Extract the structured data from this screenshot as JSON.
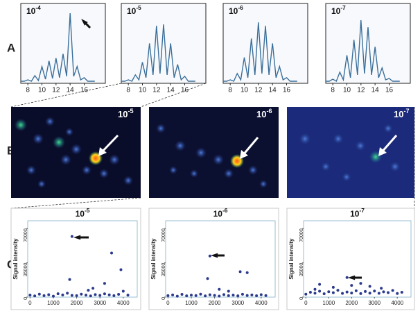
{
  "row_labels": [
    "A",
    "B",
    "C"
  ],
  "images": [
    {
      "label_base": "10",
      "label_exponent": "-5"
    },
    {
      "label_base": "10",
      "label_exponent": "-6"
    },
    {
      "label_base": "10",
      "label_exponent": "-7"
    }
  ],
  "chart_data": [
    {
      "type": "line",
      "label_base": "10",
      "label_exponent": "-4",
      "color": "#3b6f9a",
      "x": [
        7,
        7.5,
        8,
        8.5,
        9,
        9.5,
        10,
        10.5,
        11,
        11.5,
        12,
        12.5,
        13,
        13.5,
        14,
        14.5,
        15,
        15.5,
        16,
        16.5,
        17,
        17.5
      ],
      "values": [
        1,
        1,
        3,
        1,
        9,
        2,
        22,
        4,
        30,
        5,
        34,
        6,
        40,
        8,
        98,
        8,
        22,
        3,
        6,
        1,
        1,
        1
      ],
      "xlim": [
        7,
        19
      ],
      "ylim": [
        0,
        100
      ],
      "xticks": [
        8,
        10,
        12,
        14,
        16
      ]
    },
    {
      "type": "line",
      "label_base": "10",
      "label_exponent": "-5",
      "color": "#3b6f9a",
      "x": [
        7,
        7.5,
        8,
        8.5,
        9,
        9.5,
        10,
        10.5,
        11,
        11.5,
        12,
        12.5,
        13,
        13.5,
        14,
        14.5,
        15,
        15.5,
        16,
        16.5,
        17,
        17.5
      ],
      "values": [
        1,
        1,
        3,
        1,
        10,
        3,
        28,
        6,
        55,
        10,
        80,
        12,
        82,
        10,
        55,
        6,
        25,
        3,
        8,
        1,
        1,
        1
      ],
      "xlim": [
        7,
        19
      ],
      "ylim": [
        0,
        100
      ],
      "xticks": [
        8,
        10,
        12,
        14,
        16
      ]
    },
    {
      "type": "line",
      "label_base": "10",
      "label_exponent": "-6",
      "color": "#3b6f9a",
      "x": [
        7,
        7.5,
        8,
        8.5,
        9,
        9.5,
        10,
        10.5,
        11,
        11.5,
        12,
        12.5,
        13,
        13.5,
        14,
        14.5,
        15,
        15.5,
        16,
        16.5,
        17,
        17.5
      ],
      "values": [
        1,
        1,
        3,
        1,
        12,
        3,
        35,
        6,
        62,
        10,
        85,
        12,
        80,
        10,
        55,
        6,
        22,
        3,
        6,
        1,
        1,
        1
      ],
      "xlim": [
        7,
        19
      ],
      "ylim": [
        0,
        100
      ],
      "xticks": [
        8,
        10,
        12,
        14,
        16
      ]
    },
    {
      "type": "line",
      "label_base": "10",
      "label_exponent": "-7",
      "color": "#3b6f9a",
      "x": [
        7,
        7.5,
        8,
        8.5,
        9,
        9.5,
        10,
        10.5,
        11,
        11.5,
        12,
        12.5,
        13,
        13.5,
        14,
        14.5,
        15,
        15.5,
        16,
        16.5,
        17,
        17.5
      ],
      "values": [
        1,
        1,
        4,
        1,
        14,
        3,
        38,
        6,
        60,
        10,
        88,
        12,
        78,
        10,
        50,
        6,
        20,
        3,
        5,
        1,
        1,
        1
      ],
      "xlim": [
        7,
        19
      ],
      "ylim": [
        0,
        100
      ],
      "xticks": [
        8,
        10,
        12,
        14,
        16
      ]
    },
    {
      "type": "scatter",
      "label_base": "10",
      "label_exponent": "-5",
      "y_label": "Signal intensity",
      "color": "#2b3a8c",
      "x": [
        0,
        200,
        400,
        600,
        800,
        1000,
        1200,
        1400,
        1600,
        1800,
        2000,
        2200,
        2400,
        2600,
        2800,
        3000,
        3200,
        3400,
        3600,
        3800,
        4000,
        4200,
        1800,
        3500,
        3900,
        1700,
        3200,
        2700,
        2500
      ],
      "values": [
        2000,
        1200,
        3000,
        1500,
        2500,
        1000,
        3500,
        2200,
        4000,
        1800,
        1500,
        3000,
        2000,
        1200,
        2600,
        1800,
        3400,
        2300,
        1500,
        2800,
        6000,
        2000,
        62000,
        45000,
        28000,
        18000,
        14000,
        9000,
        7000
      ],
      "xlim": [
        -100,
        4600
      ],
      "ylim": [
        0,
        78000
      ],
      "xticks": [
        0,
        1000,
        2000,
        3000,
        4000
      ],
      "yticks": [
        0,
        35000,
        70000
      ]
    },
    {
      "type": "scatter",
      "label_base": "10",
      "label_exponent": "-6",
      "y_label": "Signal intensity",
      "color": "#2b3a8c",
      "x": [
        0,
        200,
        400,
        600,
        800,
        1000,
        1200,
        1400,
        1600,
        1800,
        2000,
        2200,
        2400,
        2600,
        2800,
        3000,
        3200,
        3400,
        3600,
        3800,
        4000,
        4200,
        1800,
        3100,
        3400,
        1700,
        2200,
        2600
      ],
      "values": [
        1500,
        2200,
        1000,
        2800,
        1300,
        2000,
        1600,
        3000,
        1200,
        2400,
        1800,
        1100,
        2600,
        1500,
        2000,
        1300,
        2900,
        1700,
        2200,
        1400,
        2500,
        1600,
        42000,
        26000,
        25000,
        19000,
        8000,
        6000
      ],
      "xlim": [
        -100,
        4600
      ],
      "ylim": [
        0,
        78000
      ],
      "xticks": [
        0,
        1000,
        2000,
        3000,
        4000
      ],
      "yticks": [
        0,
        35000,
        70000
      ]
    },
    {
      "type": "scatter",
      "label_base": "10",
      "label_exponent": "-7",
      "y_label": "Signal intensity",
      "color": "#2b3a8c",
      "x": [
        0,
        200,
        400,
        600,
        800,
        1000,
        1200,
        1400,
        1600,
        1800,
        2000,
        2200,
        2400,
        2600,
        2800,
        3000,
        3200,
        3400,
        3600,
        3800,
        4000,
        4200,
        1800,
        600,
        2400,
        1200,
        3300,
        2000,
        400,
        2800
      ],
      "values": [
        3000,
        5000,
        4000,
        6000,
        3500,
        5500,
        4500,
        7000,
        3800,
        5200,
        4200,
        6500,
        3600,
        5800,
        4100,
        6200,
        3900,
        5400,
        4600,
        6800,
        3700,
        5000,
        20000,
        13000,
        14000,
        10000,
        9000,
        12000,
        8000,
        11000
      ],
      "xlim": [
        -100,
        4600
      ],
      "ylim": [
        0,
        78000
      ],
      "xticks": [
        0,
        1000,
        2000,
        3000,
        4000
      ],
      "yticks": [
        0,
        35000,
        70000
      ]
    }
  ]
}
